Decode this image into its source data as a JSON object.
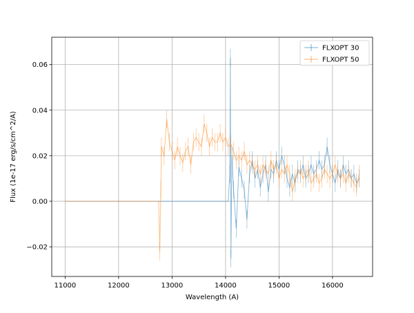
{
  "chart_data": {
    "type": "line",
    "title": "",
    "xlabel": "Wavelength (A)",
    "ylabel": "Flux (1e-17 erg/s/cm^2/A)",
    "xlim": [
      10750,
      16750
    ],
    "ylim": [
      -0.033,
      0.072
    ],
    "xticks": [
      11000,
      12000,
      13000,
      14000,
      15000,
      16000
    ],
    "xtick_labels": [
      "11000",
      "12000",
      "13000",
      "14000",
      "15000",
      "16000"
    ],
    "yticks": [
      -0.02,
      0.0,
      0.02,
      0.04,
      0.06
    ],
    "ytick_labels": [
      "−0.02",
      "0.00",
      "0.02",
      "0.04",
      "0.06"
    ],
    "grid": true,
    "legend_position": "top-right",
    "style": "line with vertical error bars, semi-transparent",
    "series": [
      {
        "name": "FLXOPT 30",
        "color": "#1f77b4",
        "points": [
          [
            11000,
            0.0
          ],
          [
            12000,
            0.0
          ],
          [
            13000,
            0.0
          ],
          [
            14000,
            0.0
          ],
          [
            14050,
            0.0
          ],
          [
            14080,
            0.012
          ],
          [
            14090,
            0.063
          ],
          [
            14100,
            -0.025
          ],
          [
            14120,
            0.02
          ],
          [
            14150,
            0.005
          ],
          [
            14200,
            -0.012
          ],
          [
            14250,
            0.015
          ],
          [
            14300,
            0.01
          ],
          [
            14350,
            0.005
          ],
          [
            14400,
            -0.008
          ],
          [
            14450,
            0.012
          ],
          [
            14500,
            0.018
          ],
          [
            14550,
            0.01
          ],
          [
            14600,
            0.014
          ],
          [
            14650,
            0.006
          ],
          [
            14700,
            0.012
          ],
          [
            14750,
            0.016
          ],
          [
            14800,
            0.004
          ],
          [
            14850,
            0.014
          ],
          [
            14900,
            0.012
          ],
          [
            14950,
            0.018
          ],
          [
            15000,
            0.014
          ],
          [
            15050,
            0.02
          ],
          [
            15100,
            0.016
          ],
          [
            15150,
            0.01
          ],
          [
            15200,
            0.006
          ],
          [
            15250,
            0.012
          ],
          [
            15300,
            0.008
          ],
          [
            15350,
            0.014
          ],
          [
            15400,
            0.012
          ],
          [
            15450,
            0.016
          ],
          [
            15500,
            0.01
          ],
          [
            15550,
            0.012
          ],
          [
            15600,
            0.016
          ],
          [
            15650,
            0.012
          ],
          [
            15700,
            0.014
          ],
          [
            15750,
            0.018
          ],
          [
            15800,
            0.014
          ],
          [
            15850,
            0.016
          ],
          [
            15900,
            0.024
          ],
          [
            15950,
            0.016
          ],
          [
            16000,
            0.012
          ],
          [
            16050,
            0.008
          ],
          [
            16100,
            0.014
          ],
          [
            16150,
            0.01
          ],
          [
            16200,
            0.016
          ],
          [
            16250,
            0.012
          ],
          [
            16300,
            0.014
          ],
          [
            16350,
            0.01
          ],
          [
            16400,
            0.012
          ],
          [
            16450,
            0.008
          ],
          [
            16500,
            0.01
          ]
        ]
      },
      {
        "name": "FLXOPT 50",
        "color": "#ff7f0e",
        "points": [
          [
            11000,
            0.0
          ],
          [
            12000,
            0.0
          ],
          [
            12750,
            0.0
          ],
          [
            12770,
            -0.022
          ],
          [
            12790,
            0.005
          ],
          [
            12800,
            0.024
          ],
          [
            12850,
            0.02
          ],
          [
            12900,
            0.036
          ],
          [
            12950,
            0.026
          ],
          [
            13000,
            0.022
          ],
          [
            13050,
            0.018
          ],
          [
            13100,
            0.024
          ],
          [
            13150,
            0.02
          ],
          [
            13200,
            0.017
          ],
          [
            13250,
            0.022
          ],
          [
            13300,
            0.024
          ],
          [
            13350,
            0.016
          ],
          [
            13400,
            0.026
          ],
          [
            13450,
            0.028
          ],
          [
            13500,
            0.026
          ],
          [
            13550,
            0.024
          ],
          [
            13600,
            0.034
          ],
          [
            13650,
            0.03
          ],
          [
            13700,
            0.024
          ],
          [
            13750,
            0.028
          ],
          [
            13800,
            0.026
          ],
          [
            13850,
            0.026
          ],
          [
            13900,
            0.03
          ],
          [
            13950,
            0.026
          ],
          [
            14000,
            0.028
          ],
          [
            14050,
            0.024
          ],
          [
            14100,
            0.025
          ],
          [
            14150,
            0.022
          ],
          [
            14200,
            0.018
          ],
          [
            14250,
            0.02
          ],
          [
            14300,
            0.018
          ],
          [
            14350,
            0.022
          ],
          [
            14400,
            0.016
          ],
          [
            14450,
            0.018
          ],
          [
            14500,
            0.016
          ],
          [
            14550,
            0.014
          ],
          [
            14600,
            0.016
          ],
          [
            14650,
            0.012
          ],
          [
            14700,
            0.016
          ],
          [
            14750,
            0.014
          ],
          [
            14800,
            0.012
          ],
          [
            14850,
            0.018
          ],
          [
            14900,
            0.014
          ],
          [
            14950,
            0.016
          ],
          [
            15000,
            0.01
          ],
          [
            15050,
            0.014
          ],
          [
            15100,
            0.012
          ],
          [
            15150,
            0.016
          ],
          [
            15200,
            0.012
          ],
          [
            15250,
            0.004
          ],
          [
            15300,
            0.01
          ],
          [
            15350,
            0.012
          ],
          [
            15400,
            0.014
          ],
          [
            15450,
            0.01
          ],
          [
            15500,
            0.012
          ],
          [
            15550,
            0.014
          ],
          [
            15600,
            0.008
          ],
          [
            15650,
            0.01
          ],
          [
            15700,
            0.012
          ],
          [
            15750,
            0.008
          ],
          [
            15800,
            0.01
          ],
          [
            15850,
            0.014
          ],
          [
            15900,
            0.012
          ],
          [
            15950,
            0.01
          ],
          [
            16000,
            0.012
          ],
          [
            16050,
            0.016
          ],
          [
            16100,
            0.012
          ],
          [
            16150,
            0.01
          ],
          [
            16200,
            0.012
          ],
          [
            16250,
            0.008
          ],
          [
            16300,
            0.012
          ],
          [
            16350,
            0.01
          ],
          [
            16400,
            0.008
          ],
          [
            16450,
            0.006
          ],
          [
            16500,
            0.012
          ]
        ]
      }
    ]
  }
}
